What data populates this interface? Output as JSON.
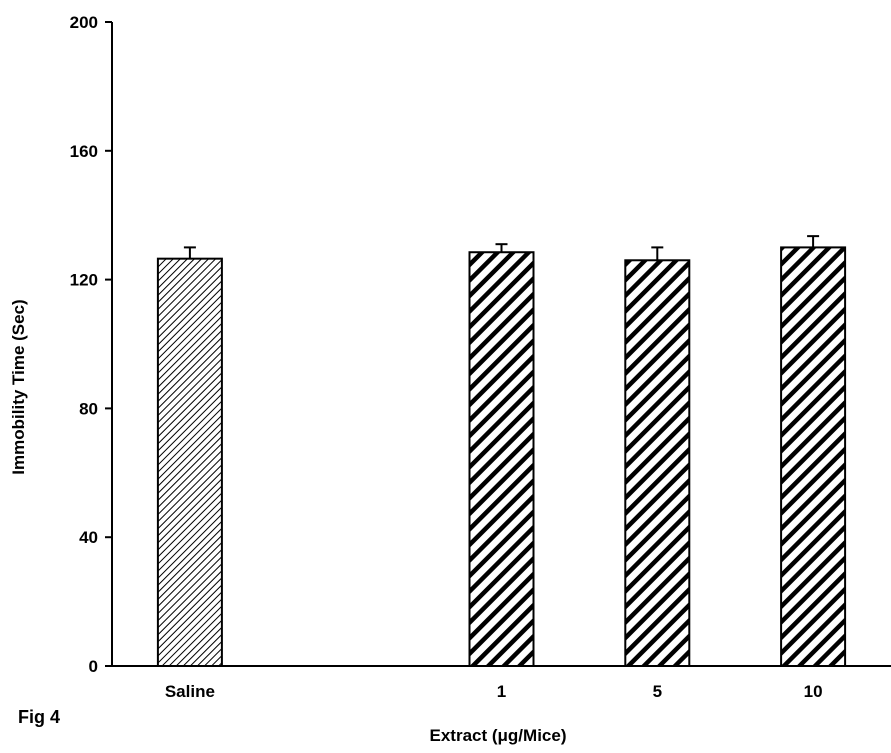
{
  "figure_label": "Fig 4",
  "chart_data": {
    "type": "bar",
    "categories": [
      "Saline",
      "1",
      "5",
      "10"
    ],
    "category_slots": [
      1,
      3,
      4,
      5
    ],
    "slot_count": 5,
    "values": [
      126.5,
      128.5,
      126,
      130
    ],
    "errors": [
      3.5,
      2.5,
      4,
      3.5
    ],
    "xlabel": "Extract (μg/Mice)",
    "ylabel": "Immobility Time (Sec)",
    "ylim": [
      0,
      200
    ],
    "yticks": [
      0,
      40,
      80,
      120,
      160,
      200
    ],
    "grid": false,
    "legend": "none",
    "colors": {
      "saline_pattern": "#000000",
      "extract_pattern": "#000000",
      "background": "#ffffff",
      "axis": "#000000"
    },
    "patterns": [
      "fine-diagonal-hatch",
      "bold-diagonal-stripe",
      "bold-diagonal-stripe",
      "bold-diagonal-stripe"
    ]
  }
}
